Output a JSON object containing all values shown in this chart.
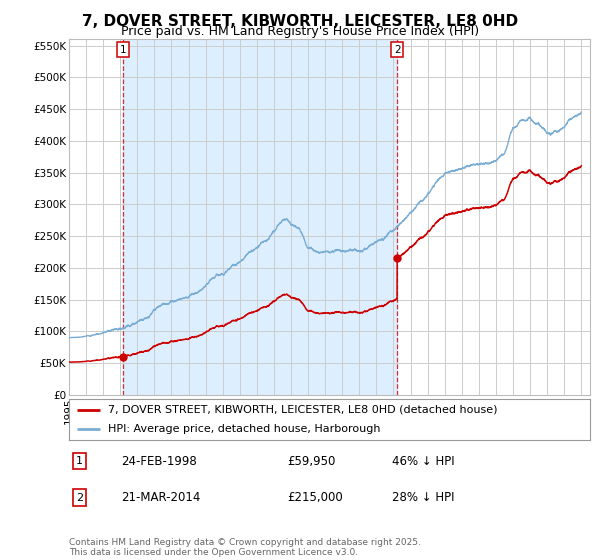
{
  "title": "7, DOVER STREET, KIBWORTH, LEICESTER, LE8 0HD",
  "subtitle": "Price paid vs. HM Land Registry's House Price Index (HPI)",
  "ylabel_vals": [
    "£0",
    "£50K",
    "£100K",
    "£150K",
    "£200K",
    "£250K",
    "£300K",
    "£350K",
    "£400K",
    "£450K",
    "£500K",
    "£550K"
  ],
  "ylim": [
    0,
    560000
  ],
  "xlim_start": 1995.0,
  "xlim_end": 2025.5,
  "sale1_x": 1998.15,
  "sale1_y": 59950,
  "sale2_x": 2014.22,
  "sale2_y": 215000,
  "sale_color": "#cc0000",
  "hpi_color": "#7aadd4",
  "hpi_fill_color": "#ddeeff",
  "vline_color": "#cc0000",
  "legend_line1": "7, DOVER STREET, KIBWORTH, LEICESTER, LE8 0HD (detached house)",
  "legend_line2": "HPI: Average price, detached house, Harborough",
  "annotation1_box": "1",
  "annotation1_date": "24-FEB-1998",
  "annotation1_price": "£59,950",
  "annotation1_hpi": "46% ↓ HPI",
  "annotation2_box": "2",
  "annotation2_date": "21-MAR-2014",
  "annotation2_price": "£215,000",
  "annotation2_hpi": "28% ↓ HPI",
  "footer": "Contains HM Land Registry data © Crown copyright and database right 2025.\nThis data is licensed under the Open Government Licence v3.0.",
  "background_color": "#ffffff",
  "grid_color": "#cccccc",
  "title_fontsize": 11,
  "subtitle_fontsize": 9,
  "tick_fontsize": 7.5,
  "legend_fontsize": 8,
  "hpi_anchors_x": [
    1995,
    1996,
    1997,
    1998,
    1999,
    2000,
    2001,
    2002,
    2003,
    2004,
    2005,
    2006,
    2007,
    2007.75,
    2008,
    2008.5,
    2009,
    2009.5,
    2010,
    2011,
    2012,
    2013,
    2014,
    2015,
    2016,
    2017,
    2018,
    2019,
    2020,
    2020.5,
    2021,
    2021.5,
    2022,
    2022.5,
    2023,
    2023.5,
    2024,
    2024.5,
    2025
  ],
  "hpi_anchors_y": [
    90000,
    92000,
    100000,
    110000,
    128000,
    148000,
    163000,
    175000,
    188000,
    205000,
    225000,
    245000,
    272000,
    292000,
    285000,
    275000,
    248000,
    245000,
    250000,
    255000,
    260000,
    272000,
    290000,
    313000,
    335000,
    362000,
    375000,
    382000,
    393000,
    405000,
    448000,
    460000,
    468000,
    460000,
    445000,
    450000,
    458000,
    468000,
    475000
  ]
}
